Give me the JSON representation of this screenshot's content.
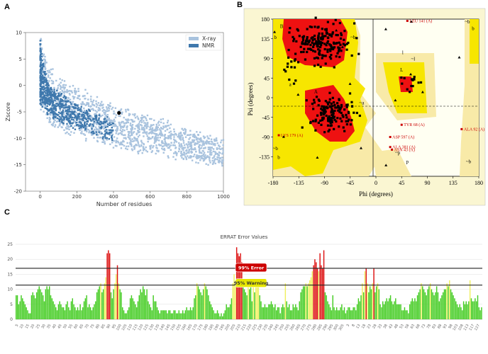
{
  "figure": {
    "panels": [
      {
        "letter": "A"
      },
      {
        "letter": "B"
      },
      {
        "letter": "C"
      }
    ]
  },
  "chart_data": [
    {
      "id": "A",
      "type": "scatter",
      "title": "",
      "xlabel": "Number of residues",
      "ylabel": "Zscore",
      "xlim": [
        -80,
        1000
      ],
      "ylim": [
        -20,
        10
      ],
      "xticks": [
        0,
        200,
        400,
        600,
        800,
        1000
      ],
      "yticks": [
        10,
        5,
        0,
        -5,
        -10,
        -15,
        -20
      ],
      "legend": {
        "position": "top-right",
        "entries": [
          {
            "name": "X-ray",
            "color": "#a9c3de"
          },
          {
            "name": "NMR",
            "color": "#3f78ad"
          }
        ]
      },
      "series": [
        {
          "name": "X-ray",
          "color": "#a9c3de",
          "band": {
            "x": [
              0,
              50,
              100,
              200,
              300,
              400,
              500,
              600,
              700,
              800,
              900,
              1000
            ],
            "upper": [
              10,
              4,
              2,
              0,
              -1.5,
              -3,
              -4.5,
              -5.5,
              -6.5,
              -8,
              -9,
              -10
            ],
            "lower": [
              -6,
              -8,
              -9,
              -10,
              -11,
              -12,
              -13,
              -13.5,
              -14,
              -14.5,
              -15,
              -15.5
            ]
          }
        },
        {
          "name": "NMR",
          "color": "#3f78ad",
          "band": {
            "x": [
              0,
              25,
              50,
              100,
              150,
              200,
              250,
              300,
              350,
              400
            ],
            "upper": [
              9,
              3,
              0.5,
              -1,
              -2,
              -3.5,
              -4,
              -5,
              -5.5,
              -6
            ],
            "lower": [
              -4,
              -5,
              -6,
              -7,
              -8,
              -8.5,
              -9,
              -10,
              -10.5,
              -11
            ]
          }
        }
      ],
      "highlight": {
        "x": 430,
        "y": -5.2,
        "color": "#000000"
      }
    },
    {
      "id": "B",
      "type": "scatter",
      "title": "",
      "xlabel": "Phi (degrees)",
      "ylabel": "Psi (degrees)",
      "xlim": [
        -180,
        180
      ],
      "ylim": [
        -180,
        180
      ],
      "xticks": [
        -180,
        -135,
        -90,
        -45,
        0,
        45,
        90,
        135,
        180
      ],
      "yticks": [
        180,
        135,
        90,
        45,
        0,
        -45,
        -90,
        -135
      ],
      "region_labels": [
        "B",
        "b",
        "~b",
        "A",
        "a",
        "~a",
        "L",
        "l",
        "~l",
        "p",
        "~p",
        "~b",
        "b",
        "~b"
      ],
      "region_points": [
        {
          "label": "B",
          "phi": -165,
          "psi": 160
        },
        {
          "label": "b",
          "phi": -176,
          "psi": 135
        },
        {
          "label": "~b",
          "phi": -40,
          "psi": 135
        },
        {
          "label": "A",
          "phi": -105,
          "psi": 10
        },
        {
          "label": "a",
          "phi": -150,
          "psi": 27
        },
        {
          "label": "~a",
          "phi": -25,
          "psi": -15
        },
        {
          "label": "L",
          "phi": 45,
          "psi": 60
        },
        {
          "label": "l",
          "phi": 47,
          "psi": 100
        },
        {
          "label": "~l",
          "phi": 65,
          "psi": 85
        },
        {
          "label": "p",
          "phi": 55,
          "psi": -150
        },
        {
          "label": "~p",
          "phi": 38,
          "psi": -130
        },
        {
          "label": "~b",
          "phi": 160,
          "psi": 170
        },
        {
          "label": "b",
          "phi": 170,
          "psi": 155
        },
        {
          "label": "~b",
          "phi": 162,
          "psi": -150
        },
        {
          "label": "~b",
          "phi": -176,
          "psi": -120
        },
        {
          "label": "b",
          "phi": -170,
          "psi": -140
        }
      ],
      "residue_labels": [
        {
          "label": "LEU 141 (A)",
          "phi": 55,
          "psi": 176
        },
        {
          "label": "TYR 68 (A)",
          "phi": 45,
          "psi": -62
        },
        {
          "label": "ALA 92 (A)",
          "phi": 150,
          "psi": -72
        },
        {
          "label": "LYS 179 (A)",
          "phi": -170,
          "psi": -86
        },
        {
          "label": "ASP 597 (A)",
          "phi": 25,
          "psi": -90
        },
        {
          "label": "ALA 381 (A)",
          "phi": 25,
          "psi": -113
        },
        {
          "label": "ASN 43 (A)",
          "phi": 28,
          "psi": -119
        }
      ]
    },
    {
      "id": "C",
      "type": "bar",
      "title": "ERRAT Error Values",
      "xlabel": "",
      "ylabel": "",
      "ylim": [
        0,
        25
      ],
      "yticks": [
        0,
        5,
        10,
        15,
        20,
        25
      ],
      "thresholds": [
        {
          "value": 17.0,
          "label": "99% Error",
          "color": "#cc0000"
        },
        {
          "value": 11.4,
          "label": "95% Warning",
          "color": "#e6e600"
        }
      ],
      "x_tick_labels": [
        "5",
        "10",
        "15",
        "20",
        "25",
        "30",
        "35",
        "40",
        "45",
        "50",
        "55",
        "60",
        "65",
        "70",
        "75",
        "80",
        "85",
        "90",
        "95",
        "100",
        "105",
        "110",
        "115",
        "120",
        "125",
        "130",
        "135",
        "140",
        "145",
        "150",
        "155",
        "160",
        "165",
        "170",
        "175",
        "180",
        "185",
        "190",
        "195",
        "200",
        "205",
        "210",
        "215",
        "220",
        "225",
        "230",
        "235",
        "240",
        "245",
        "250",
        "255",
        "260",
        "265",
        "270",
        "275",
        "280",
        "285",
        "290",
        "295",
        "300",
        "305",
        "3",
        "8",
        "13",
        "18",
        "23",
        "28",
        "33",
        "38",
        "43",
        "48",
        "53",
        "58",
        "63",
        "68",
        "73",
        "78",
        "83",
        "88",
        "93",
        "98",
        "103",
        "108",
        "113",
        "117",
        "127"
      ],
      "colors": {
        "ok": "#44cc22",
        "warn": "#f0f060",
        "error": "#dd1111"
      },
      "values": [
        8,
        8,
        5,
        6,
        8,
        7,
        6,
        5,
        4,
        3,
        2,
        2,
        8,
        9,
        8,
        7,
        9,
        10,
        11,
        10,
        9,
        8,
        6,
        10,
        11,
        10,
        11,
        8,
        7,
        6,
        5,
        4,
        3,
        5,
        6,
        5,
        4,
        4,
        3,
        5,
        6,
        4,
        3,
        6,
        7,
        5,
        4,
        3,
        4,
        3,
        5,
        3,
        4,
        6,
        7,
        8,
        4,
        5,
        4,
        3,
        4,
        5,
        6,
        9,
        10,
        11,
        12,
        9,
        10,
        12,
        14,
        22,
        23,
        22,
        9,
        7,
        10,
        12,
        15,
        18,
        12,
        10,
        9,
        4,
        3,
        2,
        2,
        3,
        4,
        7,
        8,
        7,
        6,
        5,
        4,
        6,
        8,
        10,
        9,
        11,
        10,
        8,
        10,
        6,
        5,
        4,
        3,
        8,
        6,
        6,
        4,
        3,
        2,
        3,
        3,
        3,
        3,
        3,
        2,
        3,
        3,
        2,
        2,
        3,
        3,
        2,
        2,
        3,
        2,
        2,
        3,
        2,
        3,
        4,
        3,
        3,
        4,
        3,
        4,
        7,
        8,
        12,
        11,
        10,
        9,
        8,
        10,
        12,
        11,
        10,
        8,
        6,
        5,
        4,
        3,
        2,
        2,
        3,
        2,
        1,
        2,
        1,
        2,
        3,
        5,
        4,
        4,
        5,
        7,
        12,
        15,
        13,
        24,
        22,
        21,
        22,
        19,
        11,
        10,
        9,
        8,
        12,
        10,
        11,
        6,
        12,
        9,
        12,
        13,
        12,
        8,
        6,
        4,
        4,
        5,
        4,
        4,
        5,
        5,
        6,
        5,
        4,
        5,
        3,
        4,
        4,
        2,
        4,
        5,
        4,
        12,
        6,
        4,
        5,
        3,
        3,
        5,
        4,
        5,
        4,
        3,
        6,
        9,
        10,
        11,
        11,
        12,
        11,
        12,
        13,
        14,
        16,
        18,
        20,
        19,
        17,
        16,
        22,
        18,
        17,
        23,
        9,
        8,
        6,
        5,
        4,
        3,
        8,
        4,
        3,
        4,
        3,
        3,
        4,
        5,
        3,
        4,
        2,
        3,
        4,
        4,
        3,
        3,
        4,
        4,
        3,
        5,
        7,
        6,
        8,
        12,
        9,
        16,
        17,
        12,
        9,
        11,
        10,
        12,
        17,
        9,
        11,
        12,
        10,
        5,
        4,
        6,
        5,
        6,
        7,
        6,
        7,
        8,
        6,
        5,
        6,
        7,
        5,
        5,
        5,
        5,
        3,
        3,
        4,
        3,
        3,
        2,
        5,
        6,
        7,
        6,
        7,
        6,
        8,
        9,
        10,
        12,
        11,
        10,
        9,
        8,
        10,
        11,
        12,
        10,
        9,
        8,
        9,
        11,
        9,
        6,
        7,
        8,
        9,
        10,
        10,
        12,
        11,
        13,
        10,
        9,
        8,
        7,
        6,
        5,
        4,
        5,
        4,
        3,
        6,
        5,
        6,
        5,
        6,
        13,
        7,
        6,
        6,
        7,
        6,
        8,
        4,
        3,
        4
      ]
    }
  ]
}
